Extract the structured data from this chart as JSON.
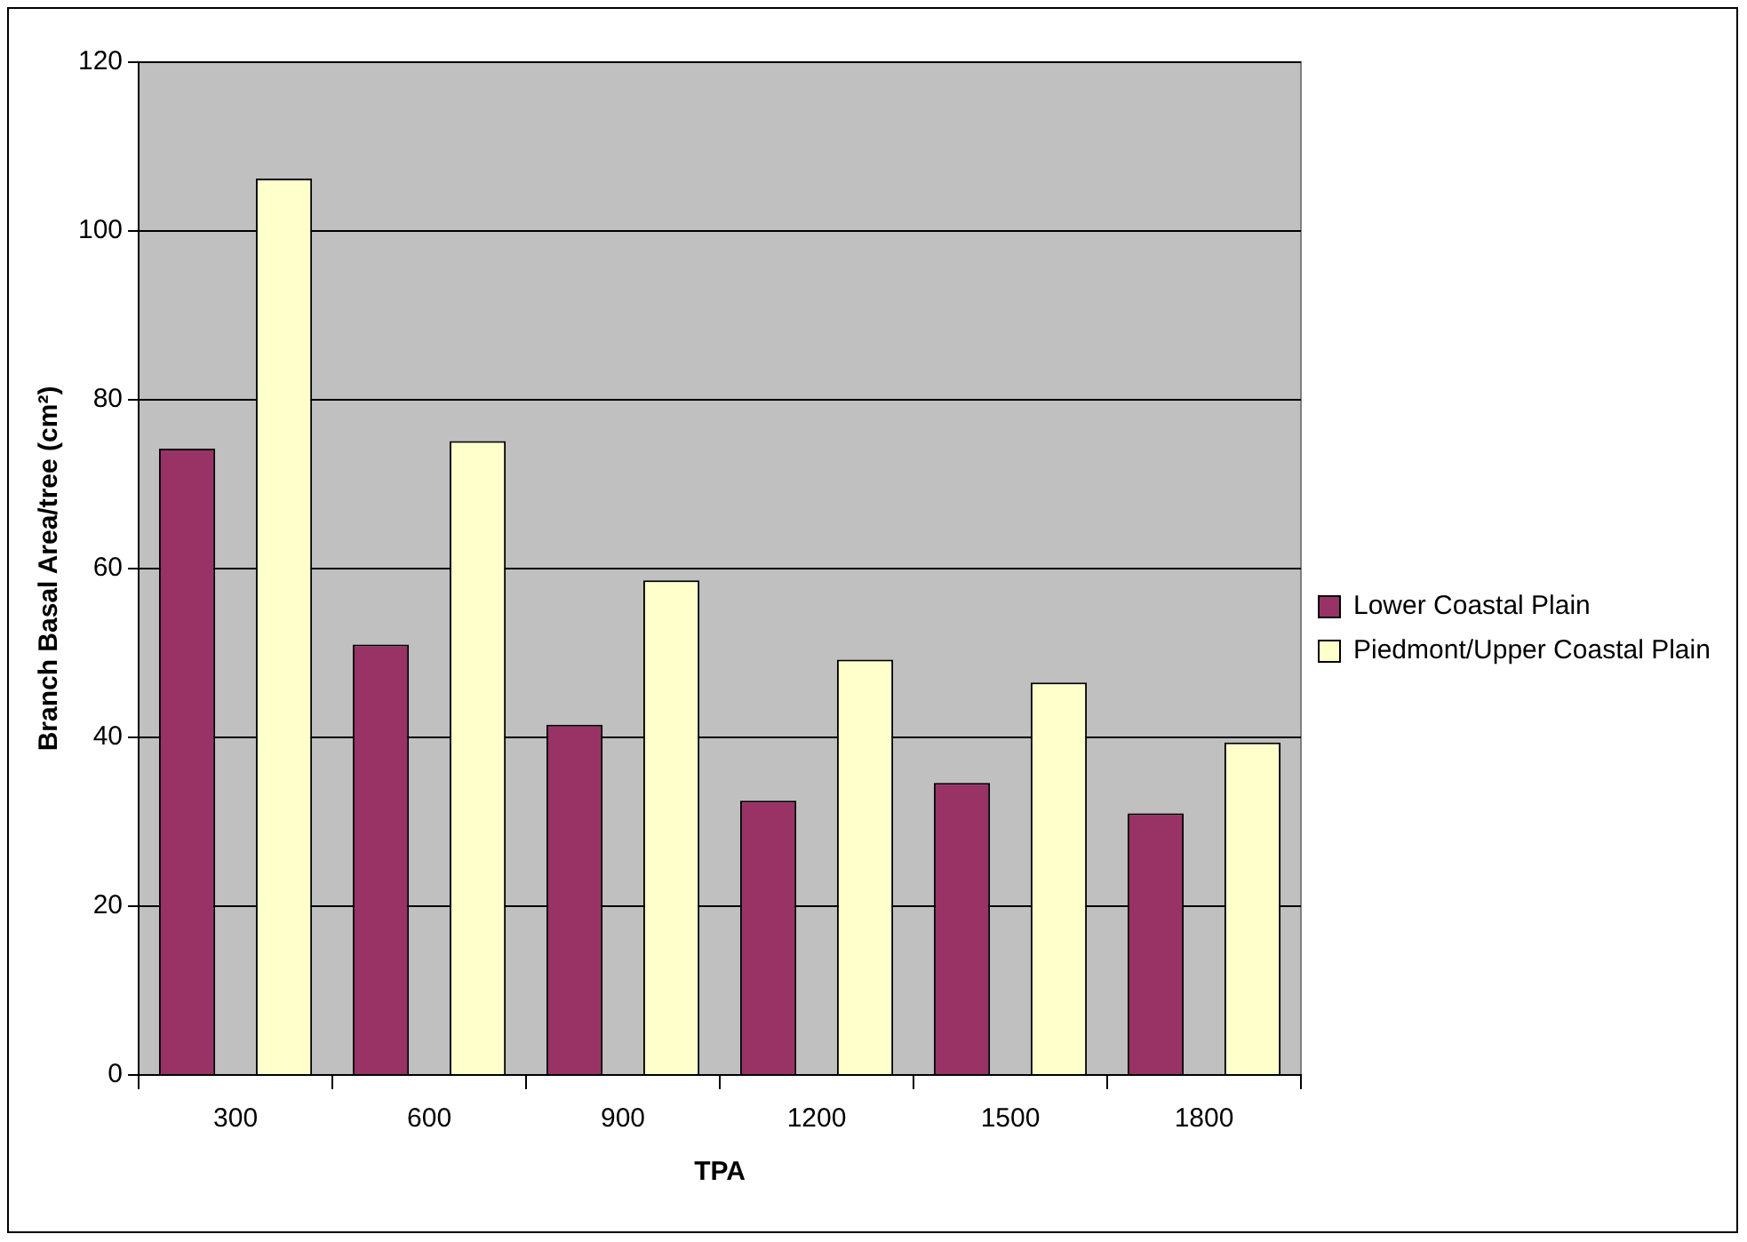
{
  "chart_data": {
    "type": "bar",
    "xlabel": "TPA",
    "ylabel": "Branch Basal Area/tree (cm²)",
    "categories": [
      "300",
      "600",
      "900",
      "1200",
      "1500",
      "1800"
    ],
    "series": [
      {
        "name": "Lower Coastal Plain",
        "color": "#993366",
        "values": [
          74.2,
          51.0,
          41.5,
          32.5,
          34.6,
          31.0
        ]
      },
      {
        "name": "Piedmont/Upper Coastal Plain",
        "color": "#ffffcc",
        "values": [
          106.2,
          75.1,
          58.6,
          49.2,
          46.5,
          39.4
        ]
      }
    ],
    "ylim": [
      0,
      120
    ],
    "yticks": [
      0,
      20,
      40,
      60,
      80,
      100,
      120
    ],
    "grid": "y",
    "legend": "right"
  }
}
